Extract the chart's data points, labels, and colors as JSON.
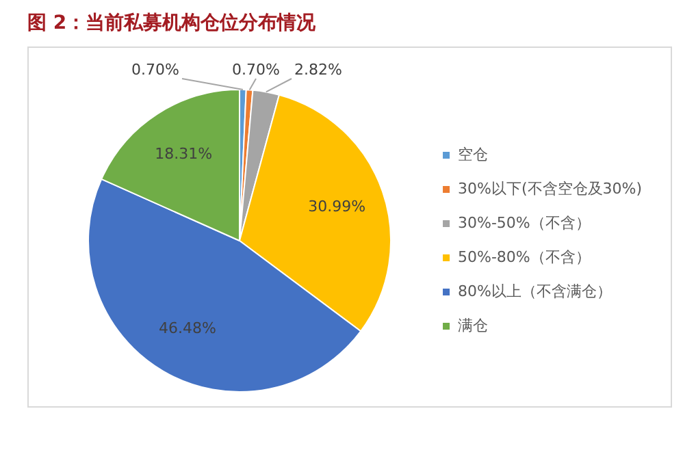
{
  "chart_data": {
    "type": "pie",
    "title": "图 2：当前私募机构仓位分布情况",
    "categories": [
      "空仓",
      "30%以下(不含空仓及30%)",
      "30%-50%（不含）",
      "50%-80%（不含）",
      "80%以上（不含满仓）",
      "满仓"
    ],
    "values": [
      0.7,
      0.7,
      2.82,
      30.99,
      46.48,
      18.31
    ],
    "value_labels": [
      "0.70%",
      "0.70%",
      "2.82%",
      "30.99%",
      "46.48%",
      "18.31%"
    ],
    "colors": [
      "#5b9bd5",
      "#ed7d31",
      "#a5a5a5",
      "#ffc000",
      "#4472c4",
      "#70ad47"
    ],
    "legend": "right"
  }
}
